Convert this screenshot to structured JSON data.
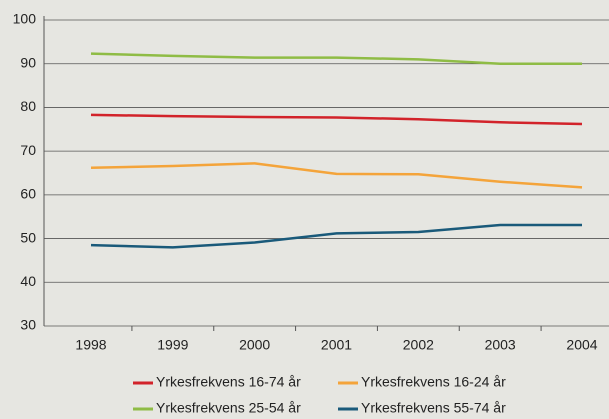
{
  "chart_data": {
    "type": "line",
    "categories": [
      "1998",
      "1999",
      "2000",
      "2001",
      "2002",
      "2003",
      "2004"
    ],
    "series": [
      {
        "name": "Yrkesfrekvens 16-74 år",
        "color": "#d2232a",
        "values": [
          78.3,
          78.0,
          77.8,
          77.7,
          77.3,
          76.6,
          76.2
        ]
      },
      {
        "name": "Yrkesfrekvens 16-24 år",
        "color": "#f4a43a",
        "values": [
          66.2,
          66.6,
          67.2,
          64.8,
          64.7,
          63.0,
          61.7
        ]
      },
      {
        "name": "Yrkesfrekvens 25-54 år",
        "color": "#8fbc45",
        "values": [
          92.3,
          91.8,
          91.4,
          91.4,
          91.0,
          90.0,
          90.0
        ]
      },
      {
        "name": "Yrkesfrekvens 55-74 år",
        "color": "#1a5a7a",
        "values": [
          48.5,
          48.0,
          49.1,
          51.2,
          51.5,
          53.1,
          53.1
        ]
      }
    ],
    "ylim": [
      30,
      100
    ],
    "yticks": [
      30,
      40,
      50,
      60,
      70,
      80,
      90,
      100
    ],
    "grid": true
  }
}
